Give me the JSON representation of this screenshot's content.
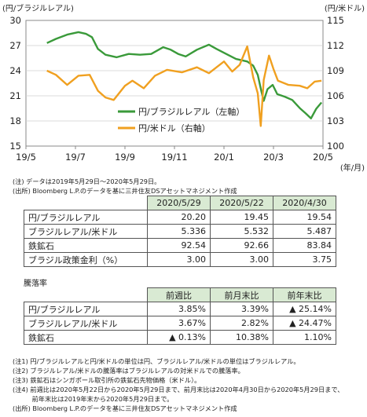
{
  "chart_data": {
    "type": "line",
    "x_tick_labels": [
      "19/5",
      "19/7",
      "19/9",
      "19/11",
      "20/1",
      "20/3",
      "20/5"
    ],
    "x_unit": "(年/月)",
    "y_left": {
      "label": "(円/ブラジルレアル)",
      "ticks": [
        "30",
        "27",
        "24",
        "21",
        "18",
        "15"
      ],
      "ylim": [
        15,
        30
      ]
    },
    "y_right": {
      "label": "(円/米ドル)",
      "ticks": [
        "115",
        "112",
        "109",
        "106",
        "103",
        "100"
      ],
      "ylim": [
        100,
        115
      ]
    },
    "legend_position": "center-right",
    "series": [
      {
        "name": "円/ブラジルレアル（左軸）",
        "axis": "left",
        "color": "#3a9a3a",
        "points": [
          [
            "2019-05-29",
            27.3
          ],
          [
            "2019-06-10",
            27.8
          ],
          [
            "2019-06-25",
            28.3
          ],
          [
            "2019-07-10",
            28.6
          ],
          [
            "2019-07-20",
            28.4
          ],
          [
            "2019-07-28",
            28.0
          ],
          [
            "2019-08-05",
            26.6
          ],
          [
            "2019-08-15",
            25.9
          ],
          [
            "2019-08-30",
            25.6
          ],
          [
            "2019-09-15",
            26.0
          ],
          [
            "2019-09-30",
            25.9
          ],
          [
            "2019-10-15",
            26.0
          ],
          [
            "2019-10-31",
            26.8
          ],
          [
            "2019-11-10",
            26.5
          ],
          [
            "2019-11-20",
            26.0
          ],
          [
            "2019-11-30",
            25.7
          ],
          [
            "2019-12-15",
            26.5
          ],
          [
            "2019-12-31",
            27.1
          ],
          [
            "2020-01-10",
            26.6
          ],
          [
            "2020-01-25",
            25.9
          ],
          [
            "2020-02-05",
            25.4
          ],
          [
            "2020-02-20",
            25.1
          ],
          [
            "2020-02-28",
            24.6
          ],
          [
            "2020-03-05",
            23.5
          ],
          [
            "2020-03-10",
            21.5
          ],
          [
            "2020-03-13",
            20.4
          ],
          [
            "2020-03-18",
            21.8
          ],
          [
            "2020-03-25",
            22.3
          ],
          [
            "2020-03-31",
            21.2
          ],
          [
            "2020-04-10",
            20.9
          ],
          [
            "2020-04-20",
            20.5
          ],
          [
            "2020-04-30",
            19.54
          ],
          [
            "2020-05-08",
            18.9
          ],
          [
            "2020-05-15",
            18.3
          ],
          [
            "2020-05-22",
            19.45
          ],
          [
            "2020-05-29",
            20.2
          ]
        ]
      },
      {
        "name": "円/米ドル（右軸）",
        "axis": "right",
        "color": "#f0a020",
        "points": [
          [
            "2019-05-29",
            109.0
          ],
          [
            "2019-06-10",
            108.5
          ],
          [
            "2019-06-25",
            107.3
          ],
          [
            "2019-07-10",
            108.4
          ],
          [
            "2019-07-25",
            108.5
          ],
          [
            "2019-08-05",
            106.6
          ],
          [
            "2019-08-15",
            105.8
          ],
          [
            "2019-08-26",
            105.5
          ],
          [
            "2019-09-10",
            107.2
          ],
          [
            "2019-09-20",
            107.8
          ],
          [
            "2019-10-05",
            106.9
          ],
          [
            "2019-10-20",
            108.4
          ],
          [
            "2019-11-05",
            109.1
          ],
          [
            "2019-11-25",
            108.8
          ],
          [
            "2019-12-15",
            109.4
          ],
          [
            "2019-12-31",
            108.7
          ],
          [
            "2020-01-10",
            109.4
          ],
          [
            "2020-01-20",
            110.1
          ],
          [
            "2020-01-31",
            108.9
          ],
          [
            "2020-02-10",
            109.7
          ],
          [
            "2020-02-20",
            111.9
          ],
          [
            "2020-02-28",
            108.2
          ],
          [
            "2020-03-05",
            106.3
          ],
          [
            "2020-03-09",
            102.4
          ],
          [
            "2020-03-13",
            107.9
          ],
          [
            "2020-03-20",
            110.8
          ],
          [
            "2020-03-26",
            109.2
          ],
          [
            "2020-04-01",
            107.8
          ],
          [
            "2020-04-15",
            107.3
          ],
          [
            "2020-04-30",
            107.2
          ],
          [
            "2020-05-10",
            106.9
          ],
          [
            "2020-05-20",
            107.7
          ],
          [
            "2020-05-29",
            107.8
          ]
        ]
      }
    ]
  },
  "notes_top": [
    "(注) データは2019年5月29日～2020年5月29日。",
    "(出所) Bloomberg L.P.のデータを基に三井住友DSアセットマネジメント作成"
  ],
  "table1": {
    "headers": [
      "2020/5/29",
      "2020/5/22",
      "2020/4/30"
    ],
    "rows": [
      {
        "label": "円/ブラジルレアル",
        "values": [
          "20.20",
          "19.45",
          "19.54"
        ]
      },
      {
        "label": "ブラジルレアル/米ドル",
        "values": [
          "5.336",
          "5.532",
          "5.487"
        ]
      },
      {
        "label": "鉄鉱石",
        "values": [
          "92.54",
          "92.66",
          "83.84"
        ]
      },
      {
        "label": "ブラジル政策金利（%）",
        "values": [
          "3.00",
          "3.00",
          "3.75"
        ]
      }
    ]
  },
  "table2": {
    "title": "騰落率",
    "headers": [
      "前週比",
      "前月末比",
      "前年末比"
    ],
    "rows": [
      {
        "label": "円/ブラジルレアル",
        "values": [
          "3.85%",
          "3.39%",
          "▲ 25.14%"
        ]
      },
      {
        "label": "ブラジルレアル/米ドル",
        "values": [
          "3.67%",
          "2.82%",
          "▲ 24.47%"
        ]
      },
      {
        "label": "鉄鉱石",
        "values": [
          "▲ 0.13%",
          "10.38%",
          "1.10%"
        ]
      }
    ]
  },
  "notes_bottom": [
    "(注1) 円/ブラジルレアルと円/米ドルの単位は円、ブラジルレアル/米ドルの単位はブラジルレアル。",
    "(注2) ブラジルレアル/米ドルの騰落率はブラジルレアルの対米ドルでの騰落率。",
    "(注3) 鉄鉱石はシンガポール取引所の鉄鉱石先物価格（米ドル）。",
    "(注4) 前週比は2020年5月22日から2020年5月29日まで、前月末比は2020年4月30日から2020年5月29日まで、",
    "　　　前年末比は2019年末から2020年5月29日まで。",
    "(出所) Bloomberg L.P.のデータを基に三井住友DSアセットマネジメント作成"
  ]
}
